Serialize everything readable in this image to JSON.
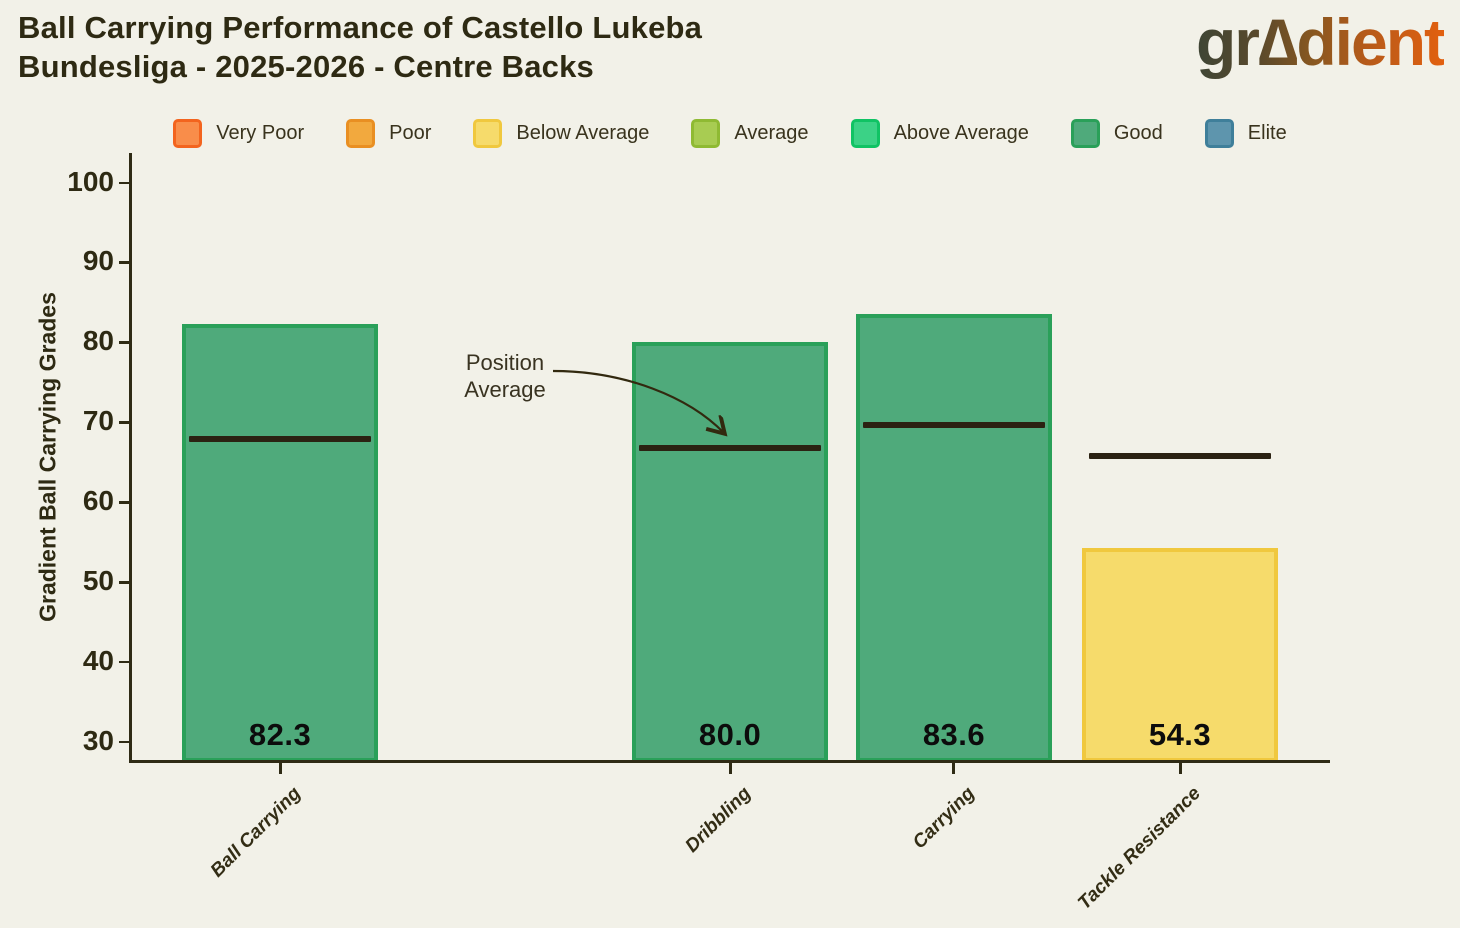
{
  "header": {
    "title_line1": "Ball Carrying Performance of Castello Lukeba",
    "title_line2": "Bundesliga - 2025-2026 - Centre Backs"
  },
  "logo": {
    "brand": "gradient",
    "display": "gr∆dient"
  },
  "legend": {
    "position": "top-center",
    "items": [
      {
        "label": "Very Poor",
        "fill": "#f98d4a",
        "border": "#f3641e"
      },
      {
        "label": "Poor",
        "fill": "#f2a93e",
        "border": "#e98f22"
      },
      {
        "label": "Below Average",
        "fill": "#f6db6b",
        "border": "#f0c83e"
      },
      {
        "label": "Average",
        "fill": "#a8cc52",
        "border": "#8fba33"
      },
      {
        "label": "Above Average",
        "fill": "#3bd286",
        "border": "#10c364"
      },
      {
        "label": "Good",
        "fill": "#4faa7b",
        "border": "#2aa059"
      },
      {
        "label": "Elite",
        "fill": "#5e95ad",
        "border": "#3f7f9a"
      }
    ]
  },
  "chart_data": {
    "type": "bar",
    "title": "Ball Carrying Performance of Castello Lukeba Bundesliga - 2025-2026 - Centre Backs",
    "ylabel": "Gradient Ball Carrying Grades",
    "xlabel": "",
    "ylim": [
      27.6,
      103.7
    ],
    "yticks": [
      30,
      40,
      50,
      60,
      70,
      80,
      90,
      100
    ],
    "grid": false,
    "categories": [
      "Ball Carrying",
      "Dribbling",
      "Carrying",
      "Tackle Resistance"
    ],
    "values": [
      82.3,
      80.0,
      83.6,
      54.3
    ],
    "value_labels": [
      "82.3",
      "80.0",
      "83.6",
      "54.3"
    ],
    "position_average": [
      67.9,
      66.8,
      69.6,
      65.8
    ],
    "grades": [
      "Good",
      "Good",
      "Good",
      "Below Average"
    ],
    "bar_fill": [
      "#4faa7b",
      "#4faa7b",
      "#4faa7b",
      "#f6db6b"
    ],
    "bar_border": [
      "#2aa059",
      "#2aa059",
      "#2aa059",
      "#f0c83e"
    ],
    "avg_line_color": "#2b2212",
    "centers_frac": [
      0.1243,
      0.4996,
      0.6864,
      0.8749
    ],
    "bar_width_frac": 0.1635,
    "annotation": {
      "line1": "Position",
      "line2": "Average"
    }
  }
}
